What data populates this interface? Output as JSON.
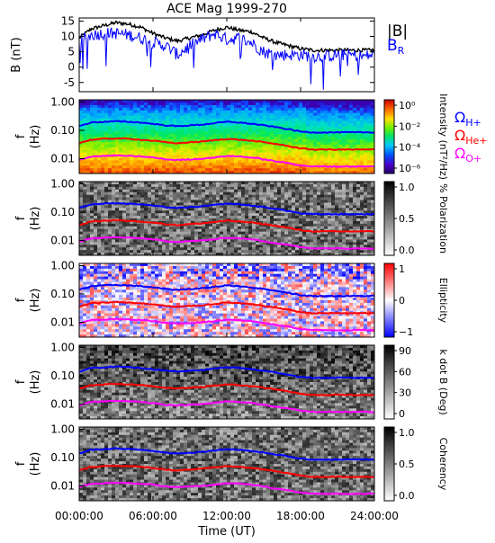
{
  "title": "ACE Mag 1999-270",
  "xaxis": {
    "label": "Time (UT)",
    "tick_labels": [
      "00:00:00",
      "06:00:00",
      "12:00:00",
      "18:00:00",
      "24:00:00"
    ],
    "tick_hours": [
      0,
      6,
      12,
      18,
      24
    ],
    "range_hours": [
      0,
      24
    ]
  },
  "legend_field": {
    "btotal_label": "|B|",
    "br_label": "B",
    "br_sub": "R",
    "btotal_color": "#000000",
    "br_color": "#0000ff"
  },
  "legend_gyro": [
    {
      "label": "Ω",
      "sub": "H+",
      "color": "#0000ff"
    },
    {
      "label": "Ω",
      "sub": "He+",
      "color": "#ff0000"
    },
    {
      "label": "Ω",
      "sub": "O+",
      "color": "#ff00ff"
    }
  ],
  "freq_ticks": [
    "1.00",
    "0.10",
    "0.01"
  ],
  "freq_range_hz": [
    0.003,
    1.2
  ],
  "panels": [
    {
      "ylabel_top": "f",
      "ylabel_bottom": "(Hz)",
      "colorbar": "Intensity (nT²/Hz)",
      "colormap": "rainbow",
      "cb_ticks": [
        "10⁰",
        "10⁻²",
        "10⁻⁴",
        "10⁻⁶"
      ]
    },
    {
      "ylabel_top": "f",
      "ylabel_bottom": "(Hz)",
      "colorbar": "% Polarization",
      "colormap": "gray",
      "cb_ticks": [
        "1.0",
        "0.5",
        "0.0"
      ]
    },
    {
      "ylabel_top": "f",
      "ylabel_bottom": "(Hz)",
      "colorbar": "Ellipticity",
      "colormap": "bwr",
      "cb_ticks": [
        "1",
        "0",
        "−1"
      ]
    },
    {
      "ylabel_top": "f",
      "ylabel_bottom": "(Hz)",
      "colorbar": "k dot B (Deg)",
      "colormap": "gray",
      "cb_ticks": [
        "90",
        "60",
        "30",
        "0"
      ]
    },
    {
      "ylabel_top": "f",
      "ylabel_bottom": "(Hz)",
      "colorbar": "Coherency",
      "colormap": "gray",
      "cb_ticks": [
        "1.0",
        "0.5",
        "0.0"
      ]
    }
  ],
  "chart_data": {
    "type": "line",
    "title": "ACE Mag 1999-270",
    "xlabel": "Time (UT)",
    "x_hours": [
      0,
      1,
      2,
      3,
      4,
      5,
      6,
      7,
      8,
      9,
      10,
      11,
      12,
      13,
      14,
      15,
      16,
      17,
      18,
      19,
      20,
      21,
      22,
      23,
      24
    ],
    "field_panel": {
      "ylabel": "B (nT)",
      "yticks": [
        "15",
        "10",
        "5",
        "0",
        "-5"
      ],
      "ylim": [
        -8,
        16
      ],
      "series": [
        {
          "name": "|B|",
          "values": [
            9.5,
            12.5,
            13.5,
            14.5,
            14,
            13,
            11,
            9.5,
            8.5,
            9.5,
            10.5,
            12,
            13,
            12,
            11.5,
            9.5,
            8,
            7,
            6,
            5.5,
            5.5,
            5.5,
            5.5,
            5.5,
            5.5
          ]
        },
        {
          "name": "B_R",
          "values": [
            8,
            10.5,
            11,
            11,
            10.5,
            9.5,
            8,
            7,
            4,
            7,
            9,
            11,
            9,
            9.5,
            8,
            5,
            4,
            4,
            4,
            3.5,
            3.5,
            4,
            4,
            3.5,
            4
          ]
        }
      ]
    },
    "gyrofrequency_series": [
      {
        "name": "Ω H+",
        "unit": "Hz",
        "values": [
          0.14,
          0.19,
          0.2,
          0.21,
          0.2,
          0.19,
          0.17,
          0.15,
          0.14,
          0.15,
          0.16,
          0.18,
          0.2,
          0.19,
          0.17,
          0.15,
          0.13,
          0.11,
          0.09,
          0.085,
          0.085,
          0.085,
          0.085,
          0.085,
          0.085
        ]
      },
      {
        "name": "Ω He+",
        "unit": "Hz",
        "values": [
          0.035,
          0.047,
          0.05,
          0.052,
          0.05,
          0.047,
          0.043,
          0.038,
          0.035,
          0.038,
          0.04,
          0.045,
          0.05,
          0.047,
          0.043,
          0.038,
          0.033,
          0.028,
          0.023,
          0.021,
          0.021,
          0.021,
          0.021,
          0.021,
          0.021
        ]
      },
      {
        "name": "Ω O+",
        "unit": "Hz",
        "values": [
          0.009,
          0.012,
          0.0125,
          0.013,
          0.0125,
          0.012,
          0.011,
          0.0095,
          0.009,
          0.0095,
          0.01,
          0.011,
          0.0125,
          0.012,
          0.011,
          0.0095,
          0.008,
          0.007,
          0.0058,
          0.0053,
          0.0053,
          0.0053,
          0.0053,
          0.0053,
          0.0053
        ]
      }
    ]
  }
}
